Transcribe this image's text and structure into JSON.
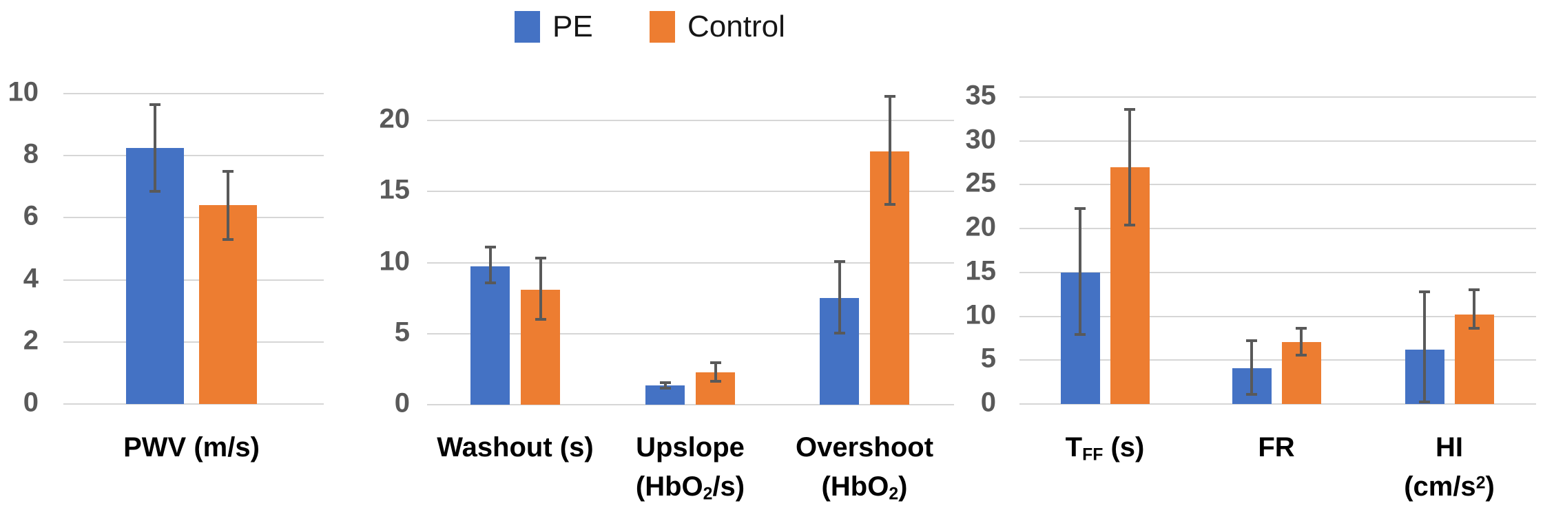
{
  "legend": {
    "items": [
      {
        "label": "PE",
        "color": "#4472C4"
      },
      {
        "label": "Control",
        "color": "#ED7D31"
      }
    ]
  },
  "colors": {
    "grid": "#D6D6D6",
    "tick_text": "#595959",
    "error_bar": "#595959",
    "category_text": "#000000",
    "background": "#FFFFFF"
  },
  "chart_data": [
    {
      "type": "bar",
      "title": "",
      "ylim": [
        0,
        10
      ],
      "yticks": [
        0,
        2,
        4,
        6,
        8,
        10
      ],
      "grid": true,
      "legend_position": "top-center",
      "categories": [
        "PWV (m/s)"
      ],
      "series": [
        {
          "name": "PE",
          "color": "#4472C4",
          "values": [
            8.25
          ],
          "err_low": [
            6.85
          ],
          "err_high": [
            9.65
          ]
        },
        {
          "name": "Control",
          "color": "#ED7D31",
          "values": [
            6.4
          ],
          "err_low": [
            5.3
          ],
          "err_high": [
            7.5
          ]
        }
      ]
    },
    {
      "type": "bar",
      "title": "",
      "ylim": [
        0,
        20
      ],
      "yticks": [
        0,
        5,
        10,
        15,
        20
      ],
      "grid": true,
      "categories": [
        "Washout (s)",
        "Upslope\n(HbO_{2}/s)",
        "Overshoot\n(HbO_{2})"
      ],
      "series": [
        {
          "name": "PE",
          "color": "#4472C4",
          "values": [
            9.75,
            1.35,
            7.5
          ],
          "err_low": [
            8.55,
            1.15,
            5.05
          ],
          "err_high": [
            11.1,
            1.55,
            10.05
          ]
        },
        {
          "name": "Control",
          "color": "#ED7D31",
          "values": [
            8.1,
            2.3,
            17.8
          ],
          "err_low": [
            6.0,
            1.65,
            14.1
          ],
          "err_high": [
            10.3,
            2.95,
            21.7
          ]
        }
      ]
    },
    {
      "type": "bar",
      "title": "",
      "ylim": [
        0,
        35
      ],
      "yticks": [
        0,
        5,
        10,
        15,
        20,
        25,
        30,
        35
      ],
      "grid": true,
      "categories": [
        "T_{FF} (s)",
        "FR",
        "HI\n(cm/s^{2})"
      ],
      "series": [
        {
          "name": "PE",
          "color": "#4472C4",
          "values": [
            15.0,
            4.1,
            6.2
          ],
          "err_low": [
            7.9,
            1.1,
            0.2
          ],
          "err_high": [
            22.3,
            7.2,
            12.8
          ]
        },
        {
          "name": "Control",
          "color": "#ED7D31",
          "values": [
            27.0,
            7.1,
            10.2
          ],
          "err_low": [
            20.4,
            5.6,
            8.6
          ],
          "err_high": [
            33.6,
            8.6,
            13.0
          ]
        }
      ]
    }
  ]
}
